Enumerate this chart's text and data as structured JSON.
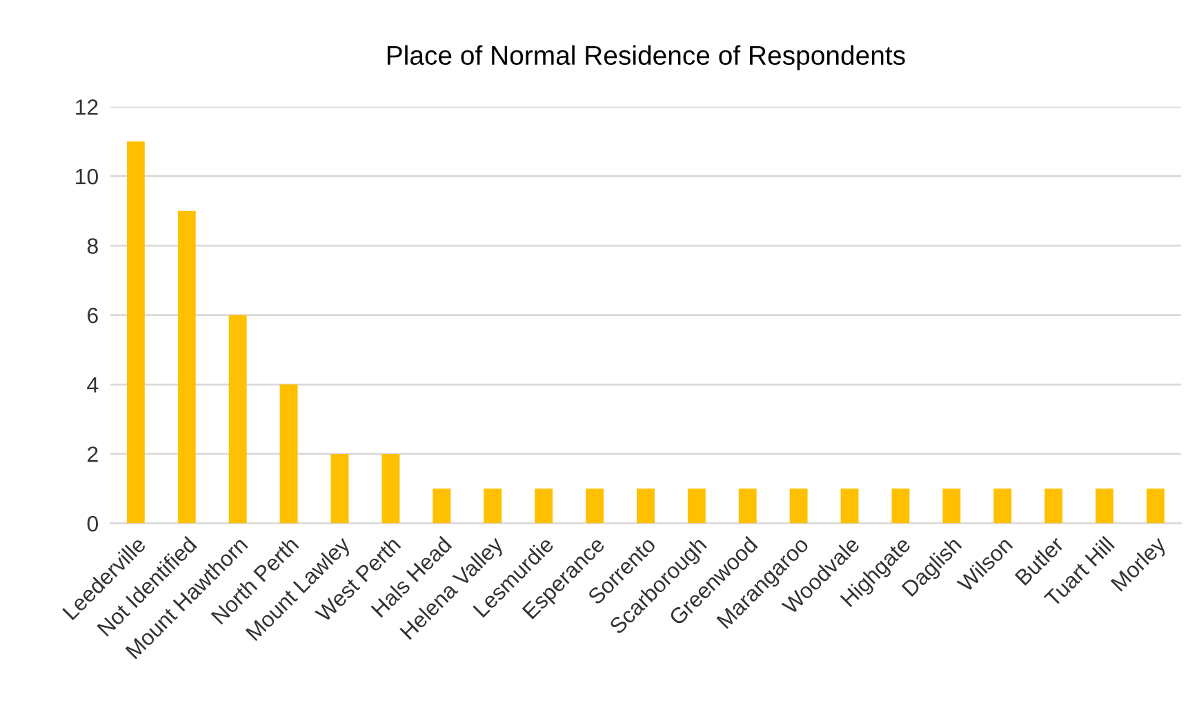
{
  "chart_data": {
    "type": "bar",
    "title": "Place of Normal Residence of Respondents",
    "categories": [
      "Leederville",
      "Not Identified",
      "Mount Hawthorn",
      "North Perth",
      "Mount Lawley",
      "West Perth",
      "Hals Head",
      "Helena Valley",
      "Lesmurdie",
      "Esperance",
      "Sorrento",
      "Scarborough",
      "Greenwood",
      "Marangaroo",
      "Woodvale",
      "Highgate",
      "Daglish",
      "Wilson",
      "Butler",
      "Tuart Hill",
      "Morley"
    ],
    "values": [
      11,
      9,
      6,
      4,
      2,
      2,
      1,
      1,
      1,
      1,
      1,
      1,
      1,
      1,
      1,
      1,
      1,
      1,
      1,
      1,
      1
    ],
    "color": "#ffc000",
    "ylim": [
      0,
      12
    ],
    "yticks": [
      0,
      2,
      4,
      6,
      8,
      10,
      12
    ],
    "grid": "y"
  }
}
